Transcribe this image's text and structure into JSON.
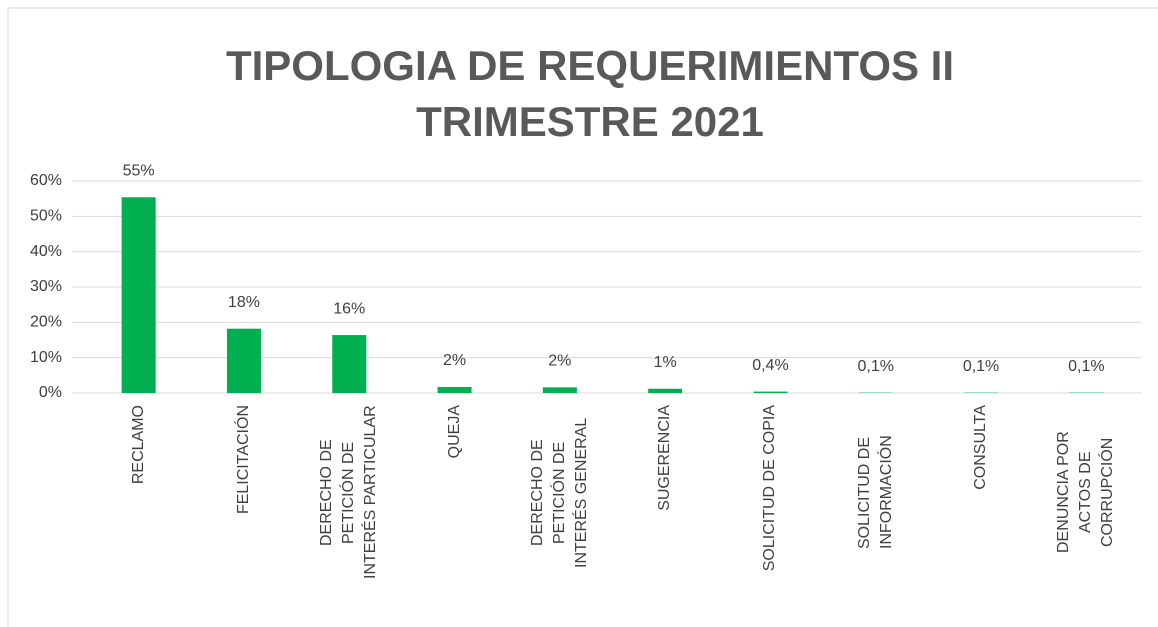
{
  "chart_data": {
    "type": "bar",
    "title": "TIPOLOGIA DE REQUERIMIENTOS II TRIMESTRE 2021",
    "categories": [
      "RECLAMO",
      "FELICITACIÓN",
      "DERECHO DE PETICIÓN DE INTERÉS PARTICULAR",
      "QUEJA",
      "DERECHO DE PETICIÓN DE INTERÉS GENERAL",
      "SUGERENCIA",
      "SOLICITUD DE COPIA",
      "SOLICITUD DE INFORMACIÓN",
      "CONSULTA",
      "DENUNCIA POR ACTOS DE CORRUPCIÓN"
    ],
    "values": [
      55.4,
      18.2,
      16.4,
      1.7,
      1.6,
      1.2,
      0.4,
      0.1,
      0.1,
      0.1
    ],
    "value_labels": [
      "55%",
      "18%",
      "16%",
      "2%",
      "2%",
      "1%",
      "0,4%",
      "0,1%",
      "0,1%",
      "0,1%"
    ],
    "color": "#00b050",
    "ylim": [
      0,
      60
    ],
    "yticks": [
      {
        "value": 0,
        "label": "0%"
      },
      {
        "value": 10,
        "label": "10%"
      },
      {
        "value": 20,
        "label": "20%"
      },
      {
        "value": 30,
        "label": "30%"
      },
      {
        "value": 40,
        "label": "40%"
      },
      {
        "value": 50,
        "label": "50%"
      },
      {
        "value": 60,
        "label": "60%"
      }
    ],
    "grid": true
  }
}
